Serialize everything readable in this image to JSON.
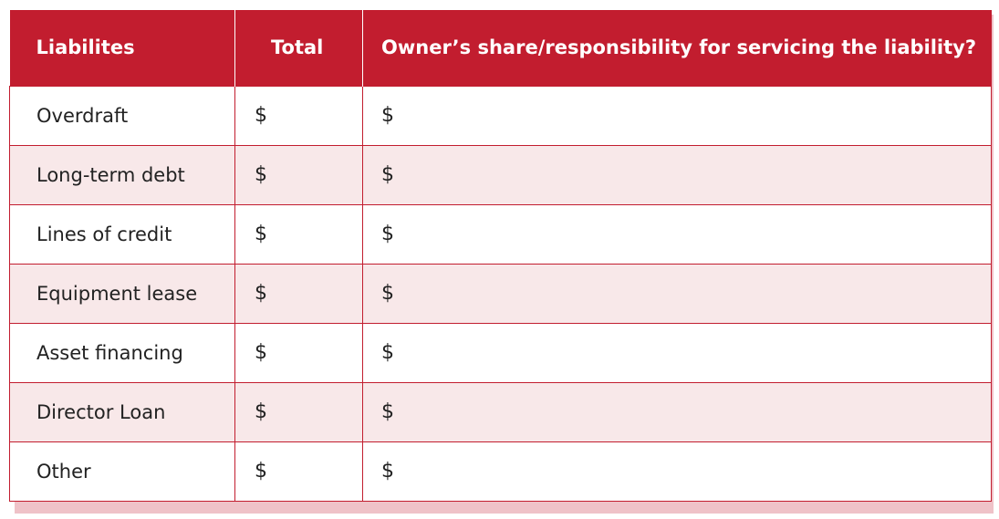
{
  "table": {
    "headers": {
      "liabilities": "Liabilites",
      "total": "Total",
      "owner_share": "Owner’s share/responsibility for servicing the liability?"
    },
    "currency": "$",
    "rows": [
      {
        "label": "Overdraft",
        "total": "$",
        "share": "$"
      },
      {
        "label": "Long-term debt",
        "total": "$",
        "share": "$"
      },
      {
        "label": "Lines of credit",
        "total": "$",
        "share": "$"
      },
      {
        "label": "Equipment lease",
        "total": "$",
        "share": "$"
      },
      {
        "label": "Asset financing",
        "total": "$",
        "share": "$"
      },
      {
        "label": "Director Loan",
        "total": "$",
        "share": "$"
      },
      {
        "label": "Other",
        "total": "$",
        "share": "$"
      }
    ]
  },
  "colors": {
    "header_bg": "#c21d2f",
    "alt_row_bg": "#f8e8e9",
    "shadow": "#efc2c8"
  }
}
